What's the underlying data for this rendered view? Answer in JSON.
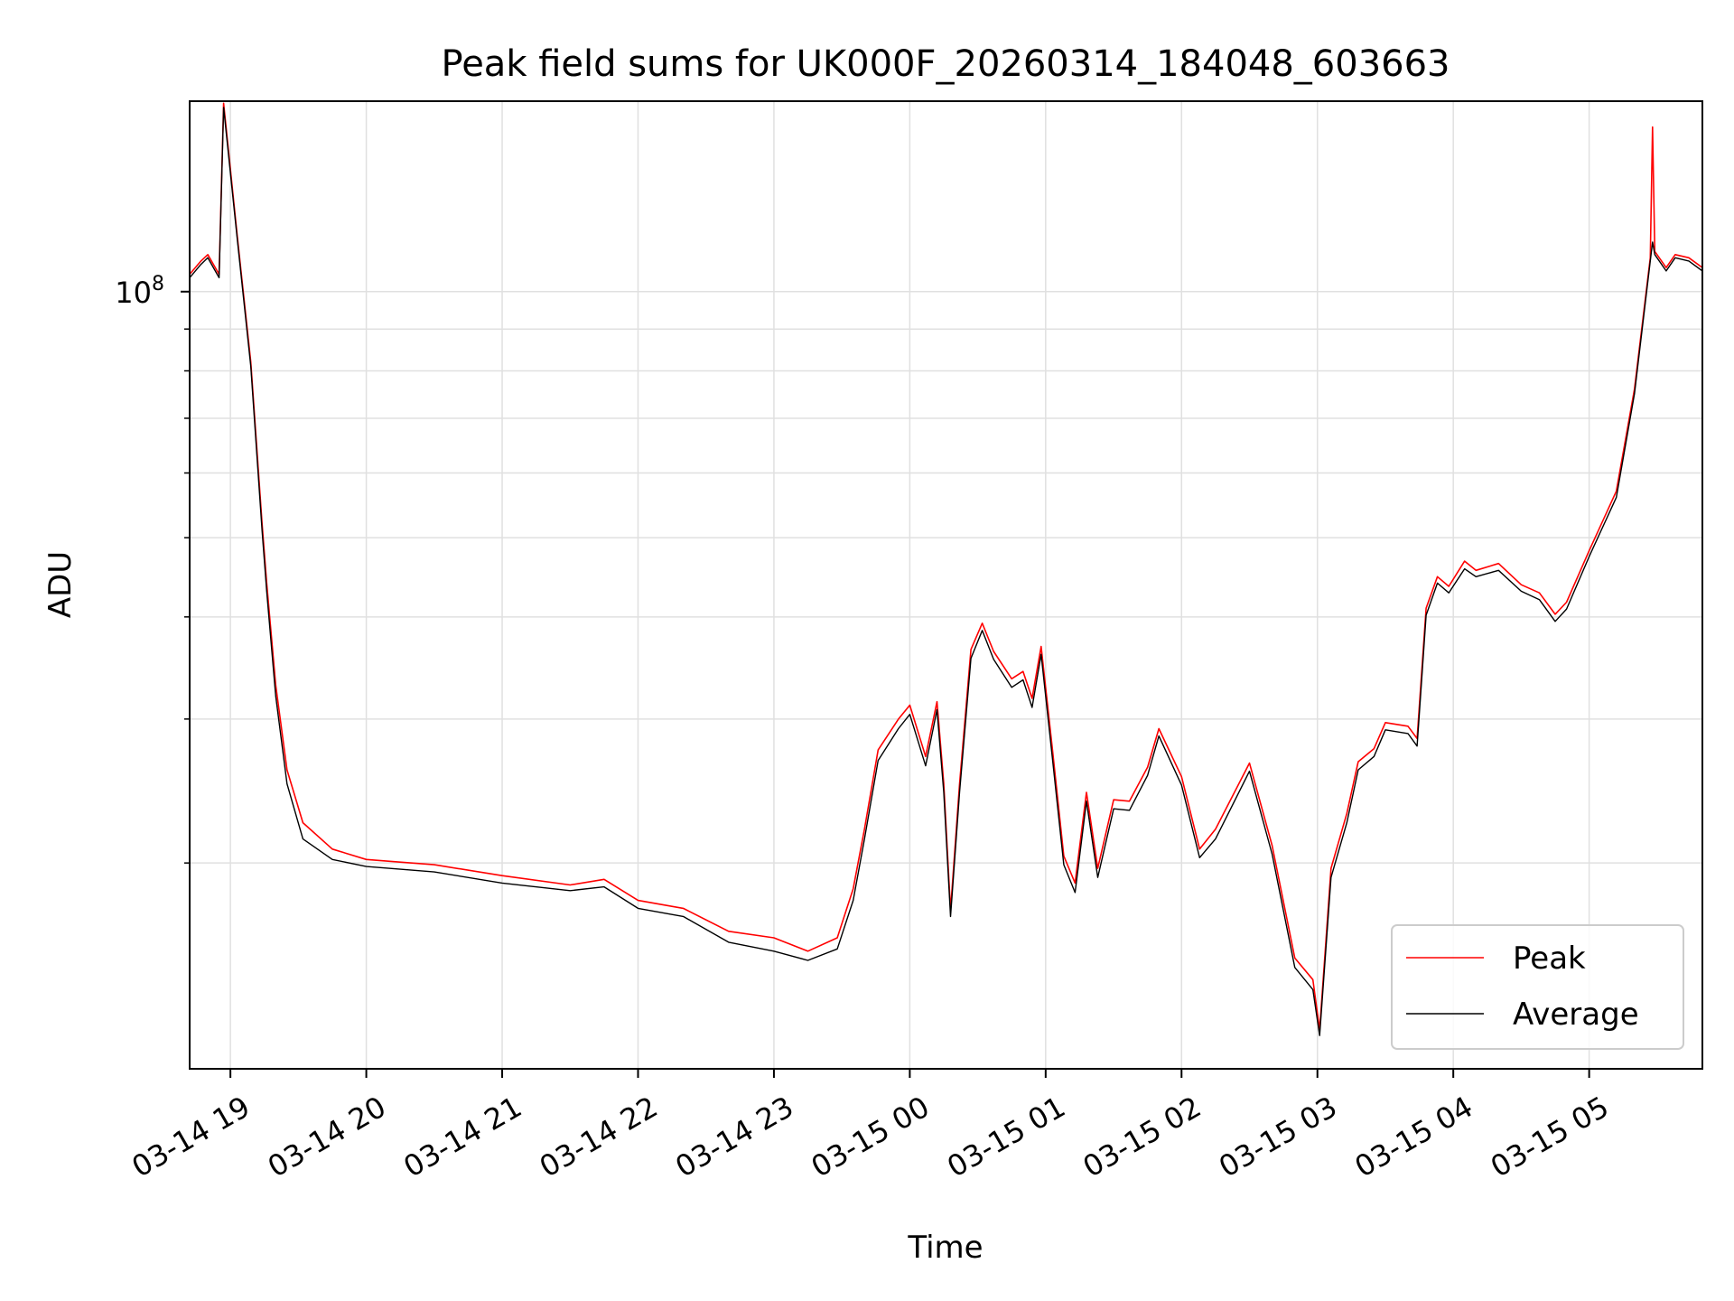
{
  "chart_data": {
    "type": "line",
    "title": "Peak field sums for UK000F_20260314_184048_603663",
    "xlabel": "Time",
    "ylabel": "ADU",
    "x_type": "datetime",
    "xlim": [
      "2026-03-14T18:42",
      "2026-03-15T05:50"
    ],
    "ylim": [
      11200000,
      171000000
    ],
    "y_scale": "log",
    "grid": true,
    "legend_position": "lower right",
    "x_ticks": [
      {
        "value": "2026-03-14T19:00",
        "label": "03-14 19"
      },
      {
        "value": "2026-03-14T20:00",
        "label": "03-14 20"
      },
      {
        "value": "2026-03-14T21:00",
        "label": "03-14 21"
      },
      {
        "value": "2026-03-14T22:00",
        "label": "03-14 22"
      },
      {
        "value": "2026-03-14T23:00",
        "label": "03-14 23"
      },
      {
        "value": "2026-03-15T00:00",
        "label": "03-15 00"
      },
      {
        "value": "2026-03-15T01:00",
        "label": "03-15 01"
      },
      {
        "value": "2026-03-15T02:00",
        "label": "03-15 02"
      },
      {
        "value": "2026-03-15T03:00",
        "label": "03-15 03"
      },
      {
        "value": "2026-03-15T04:00",
        "label": "03-15 04"
      },
      {
        "value": "2026-03-15T05:00",
        "label": "03-15 05"
      }
    ],
    "y_major_ticks": [
      {
        "value": 100000000,
        "base": "10",
        "exp": "8"
      }
    ],
    "y_minor_ticks": [
      20000000,
      30000000,
      40000000,
      50000000,
      60000000,
      70000000,
      80000000,
      90000000
    ],
    "series": [
      {
        "name": "Peak",
        "color": "#ff0000",
        "points": [
          [
            "2026-03-14T18:42",
            105000000
          ],
          [
            "2026-03-14T18:47",
            109000000
          ],
          [
            "2026-03-14T18:50",
            111000000
          ],
          [
            "2026-03-14T18:55",
            105000000
          ],
          [
            "2026-03-14T18:57",
            170000000
          ],
          [
            "2026-03-14T19:03",
            117000000
          ],
          [
            "2026-03-14T19:09",
            82000000
          ],
          [
            "2026-03-14T19:14",
            52000000
          ],
          [
            "2026-03-14T19:16",
            44000000
          ],
          [
            "2026-03-14T19:20",
            33000000
          ],
          [
            "2026-03-14T19:25",
            26000000
          ],
          [
            "2026-03-14T19:32",
            22400000
          ],
          [
            "2026-03-14T19:45",
            20800000
          ],
          [
            "2026-03-14T20:00",
            20200000
          ],
          [
            "2026-03-14T20:20",
            20000000
          ],
          [
            "2026-03-14T20:30",
            19900000
          ],
          [
            "2026-03-14T21:00",
            19300000
          ],
          [
            "2026-03-14T21:30",
            18800000
          ],
          [
            "2026-03-14T21:45",
            19100000
          ],
          [
            "2026-03-14T22:00",
            18000000
          ],
          [
            "2026-03-14T22:20",
            17600000
          ],
          [
            "2026-03-14T22:40",
            16500000
          ],
          [
            "2026-03-14T23:00",
            16200000
          ],
          [
            "2026-03-14T23:15",
            15600000
          ],
          [
            "2026-03-14T23:28",
            16200000
          ],
          [
            "2026-03-14T23:35",
            18600000
          ],
          [
            "2026-03-14T23:40",
            22000000
          ],
          [
            "2026-03-14T23:46",
            27500000
          ],
          [
            "2026-03-14T23:55",
            30000000
          ],
          [
            "2026-03-15T00:00",
            31200000
          ],
          [
            "2026-03-15T00:07",
            27000000
          ],
          [
            "2026-03-15T00:12",
            31500000
          ],
          [
            "2026-03-15T00:15",
            25000000
          ],
          [
            "2026-03-15T00:18",
            17500000
          ],
          [
            "2026-03-15T00:22",
            25000000
          ],
          [
            "2026-03-15T00:27",
            36500000
          ],
          [
            "2026-03-15T00:32",
            39300000
          ],
          [
            "2026-03-15T00:37",
            36300000
          ],
          [
            "2026-03-15T00:45",
            33600000
          ],
          [
            "2026-03-15T00:50",
            34300000
          ],
          [
            "2026-03-15T00:54",
            31800000
          ],
          [
            "2026-03-15T00:58",
            36800000
          ],
          [
            "2026-03-15T01:03",
            27500000
          ],
          [
            "2026-03-15T01:08",
            20400000
          ],
          [
            "2026-03-15T01:13",
            18900000
          ],
          [
            "2026-03-15T01:18",
            24400000
          ],
          [
            "2026-03-15T01:23",
            19700000
          ],
          [
            "2026-03-15T01:30",
            23900000
          ],
          [
            "2026-03-15T01:37",
            23800000
          ],
          [
            "2026-03-15T01:45",
            26200000
          ],
          [
            "2026-03-15T01:50",
            29200000
          ],
          [
            "2026-03-15T02:00",
            25500000
          ],
          [
            "2026-03-15T02:08",
            20800000
          ],
          [
            "2026-03-15T02:15",
            22000000
          ],
          [
            "2026-03-15T02:30",
            26500000
          ],
          [
            "2026-03-15T02:40",
            21000000
          ],
          [
            "2026-03-15T02:50",
            15300000
          ],
          [
            "2026-03-15T02:58",
            14400000
          ],
          [
            "2026-03-15T03:01",
            12500000
          ],
          [
            "2026-03-15T03:06",
            19700000
          ],
          [
            "2026-03-15T03:13",
            23000000
          ],
          [
            "2026-03-15T03:18",
            26600000
          ],
          [
            "2026-03-15T03:25",
            27600000
          ],
          [
            "2026-03-15T03:30",
            29700000
          ],
          [
            "2026-03-15T03:40",
            29400000
          ],
          [
            "2026-03-15T03:44",
            28400000
          ],
          [
            "2026-03-15T03:48",
            41000000
          ],
          [
            "2026-03-15T03:53",
            44800000
          ],
          [
            "2026-03-15T03:58",
            43600000
          ],
          [
            "2026-03-15T04:05",
            46800000
          ],
          [
            "2026-03-15T04:10",
            45600000
          ],
          [
            "2026-03-15T04:20",
            46500000
          ],
          [
            "2026-03-15T04:30",
            43800000
          ],
          [
            "2026-03-15T04:38",
            42800000
          ],
          [
            "2026-03-15T04:45",
            40300000
          ],
          [
            "2026-03-15T04:50",
            41700000
          ],
          [
            "2026-03-15T05:00",
            48200000
          ],
          [
            "2026-03-15T05:12",
            57000000
          ],
          [
            "2026-03-15T05:20",
            76000000
          ],
          [
            "2026-03-15T05:27",
            110000000
          ],
          [
            "2026-03-15T05:28",
            159000000
          ],
          [
            "2026-03-15T05:29",
            112000000
          ],
          [
            "2026-03-15T05:34",
            107000000
          ],
          [
            "2026-03-15T05:38",
            111000000
          ],
          [
            "2026-03-15T05:44",
            110000000
          ],
          [
            "2026-03-15T05:50",
            107000000
          ]
        ]
      },
      {
        "name": "Average",
        "color": "#000000",
        "points": [
          [
            "2026-03-14T18:42",
            104000000
          ],
          [
            "2026-03-14T18:47",
            108000000
          ],
          [
            "2026-03-14T18:50",
            110000000
          ],
          [
            "2026-03-14T18:55",
            104000000
          ],
          [
            "2026-03-14T18:57",
            168000000
          ],
          [
            "2026-03-14T19:03",
            116000000
          ],
          [
            "2026-03-14T19:09",
            81000000
          ],
          [
            "2026-03-14T19:14",
            51000000
          ],
          [
            "2026-03-14T19:16",
            43000000
          ],
          [
            "2026-03-14T19:20",
            32000000
          ],
          [
            "2026-03-14T19:25",
            25000000
          ],
          [
            "2026-03-14T19:32",
            21400000
          ],
          [
            "2026-03-14T19:45",
            20200000
          ],
          [
            "2026-03-14T20:00",
            19800000
          ],
          [
            "2026-03-14T20:20",
            19600000
          ],
          [
            "2026-03-14T20:30",
            19500000
          ],
          [
            "2026-03-14T21:00",
            18900000
          ],
          [
            "2026-03-14T21:30",
            18500000
          ],
          [
            "2026-03-14T21:45",
            18700000
          ],
          [
            "2026-03-14T22:00",
            17600000
          ],
          [
            "2026-03-14T22:20",
            17200000
          ],
          [
            "2026-03-14T22:40",
            16000000
          ],
          [
            "2026-03-14T23:00",
            15600000
          ],
          [
            "2026-03-14T23:15",
            15200000
          ],
          [
            "2026-03-14T23:28",
            15700000
          ],
          [
            "2026-03-14T23:35",
            18000000
          ],
          [
            "2026-03-14T23:40",
            21400000
          ],
          [
            "2026-03-14T23:46",
            26700000
          ],
          [
            "2026-03-14T23:55",
            29200000
          ],
          [
            "2026-03-15T00:00",
            30400000
          ],
          [
            "2026-03-15T00:07",
            26300000
          ],
          [
            "2026-03-15T00:12",
            30800000
          ],
          [
            "2026-03-15T00:15",
            24400000
          ],
          [
            "2026-03-15T00:18",
            17200000
          ],
          [
            "2026-03-15T00:22",
            24400000
          ],
          [
            "2026-03-15T00:27",
            35600000
          ],
          [
            "2026-03-15T00:32",
            38500000
          ],
          [
            "2026-03-15T00:37",
            35500000
          ],
          [
            "2026-03-15T00:45",
            32800000
          ],
          [
            "2026-03-15T00:50",
            33500000
          ],
          [
            "2026-03-15T00:54",
            31000000
          ],
          [
            "2026-03-15T00:58",
            36000000
          ],
          [
            "2026-03-15T01:03",
            26800000
          ],
          [
            "2026-03-15T01:08",
            19900000
          ],
          [
            "2026-03-15T01:13",
            18400000
          ],
          [
            "2026-03-15T01:18",
            23800000
          ],
          [
            "2026-03-15T01:23",
            19200000
          ],
          [
            "2026-03-15T01:30",
            23300000
          ],
          [
            "2026-03-15T01:37",
            23200000
          ],
          [
            "2026-03-15T01:45",
            25600000
          ],
          [
            "2026-03-15T01:50",
            28600000
          ],
          [
            "2026-03-15T02:00",
            24900000
          ],
          [
            "2026-03-15T02:08",
            20300000
          ],
          [
            "2026-03-15T02:15",
            21400000
          ],
          [
            "2026-03-15T02:30",
            25900000
          ],
          [
            "2026-03-15T02:40",
            20500000
          ],
          [
            "2026-03-15T02:50",
            14900000
          ],
          [
            "2026-03-15T02:58",
            14000000
          ],
          [
            "2026-03-15T03:01",
            12300000
          ],
          [
            "2026-03-15T03:06",
            19200000
          ],
          [
            "2026-03-15T03:13",
            22400000
          ],
          [
            "2026-03-15T03:18",
            26000000
          ],
          [
            "2026-03-15T03:25",
            27000000
          ],
          [
            "2026-03-15T03:30",
            29100000
          ],
          [
            "2026-03-15T03:40",
            28800000
          ],
          [
            "2026-03-15T03:44",
            27800000
          ],
          [
            "2026-03-15T03:48",
            40200000
          ],
          [
            "2026-03-15T03:53",
            44000000
          ],
          [
            "2026-03-15T03:58",
            42800000
          ],
          [
            "2026-03-15T04:05",
            45800000
          ],
          [
            "2026-03-15T04:10",
            44800000
          ],
          [
            "2026-03-15T04:20",
            45600000
          ],
          [
            "2026-03-15T04:30",
            43000000
          ],
          [
            "2026-03-15T04:38",
            42000000
          ],
          [
            "2026-03-15T04:45",
            39500000
          ],
          [
            "2026-03-15T04:50",
            40900000
          ],
          [
            "2026-03-15T05:00",
            47400000
          ],
          [
            "2026-03-15T05:12",
            56000000
          ],
          [
            "2026-03-15T05:20",
            75000000
          ],
          [
            "2026-03-15T05:27",
            109000000
          ],
          [
            "2026-03-15T05:28",
            115000000
          ],
          [
            "2026-03-15T05:29",
            111000000
          ],
          [
            "2026-03-15T05:34",
            106000000
          ],
          [
            "2026-03-15T05:38",
            110000000
          ],
          [
            "2026-03-15T05:44",
            109000000
          ],
          [
            "2026-03-15T05:50",
            106000000
          ]
        ]
      }
    ]
  }
}
